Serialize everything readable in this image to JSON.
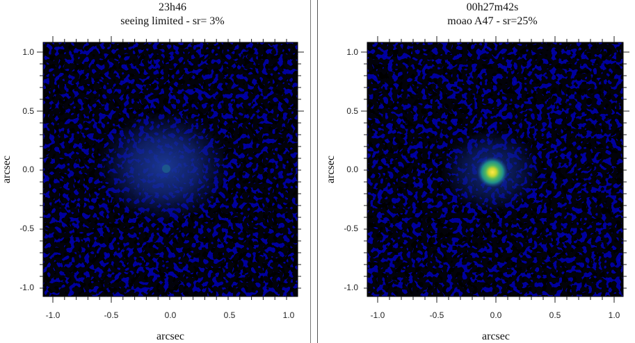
{
  "panels": [
    {
      "title": "23h46",
      "subtitle": "seeing limited - sr= 3%",
      "xlabel": "arcsec",
      "ylabel": "arcsec",
      "xticks": [
        "-1.0",
        "-0.5",
        "0.0",
        "0.5",
        "1.0"
      ],
      "yticks": [
        "1.0",
        "0.5",
        "0.0",
        "-0.5",
        "-1.0"
      ],
      "colormap": "dark-blue-to-yellow"
    },
    {
      "title": "00h27m42s",
      "subtitle": "moao A47 - sr=25%",
      "xlabel": "arcsec",
      "ylabel": "arcsec",
      "xticks": [
        "-1.0",
        "-0.5",
        "0.0",
        "0.5",
        "1.0"
      ],
      "yticks": [
        "1.0",
        "0.5",
        "0.0",
        "-0.5",
        "-1.0"
      ],
      "colormap": "dark-blue-to-yellow"
    }
  ]
}
